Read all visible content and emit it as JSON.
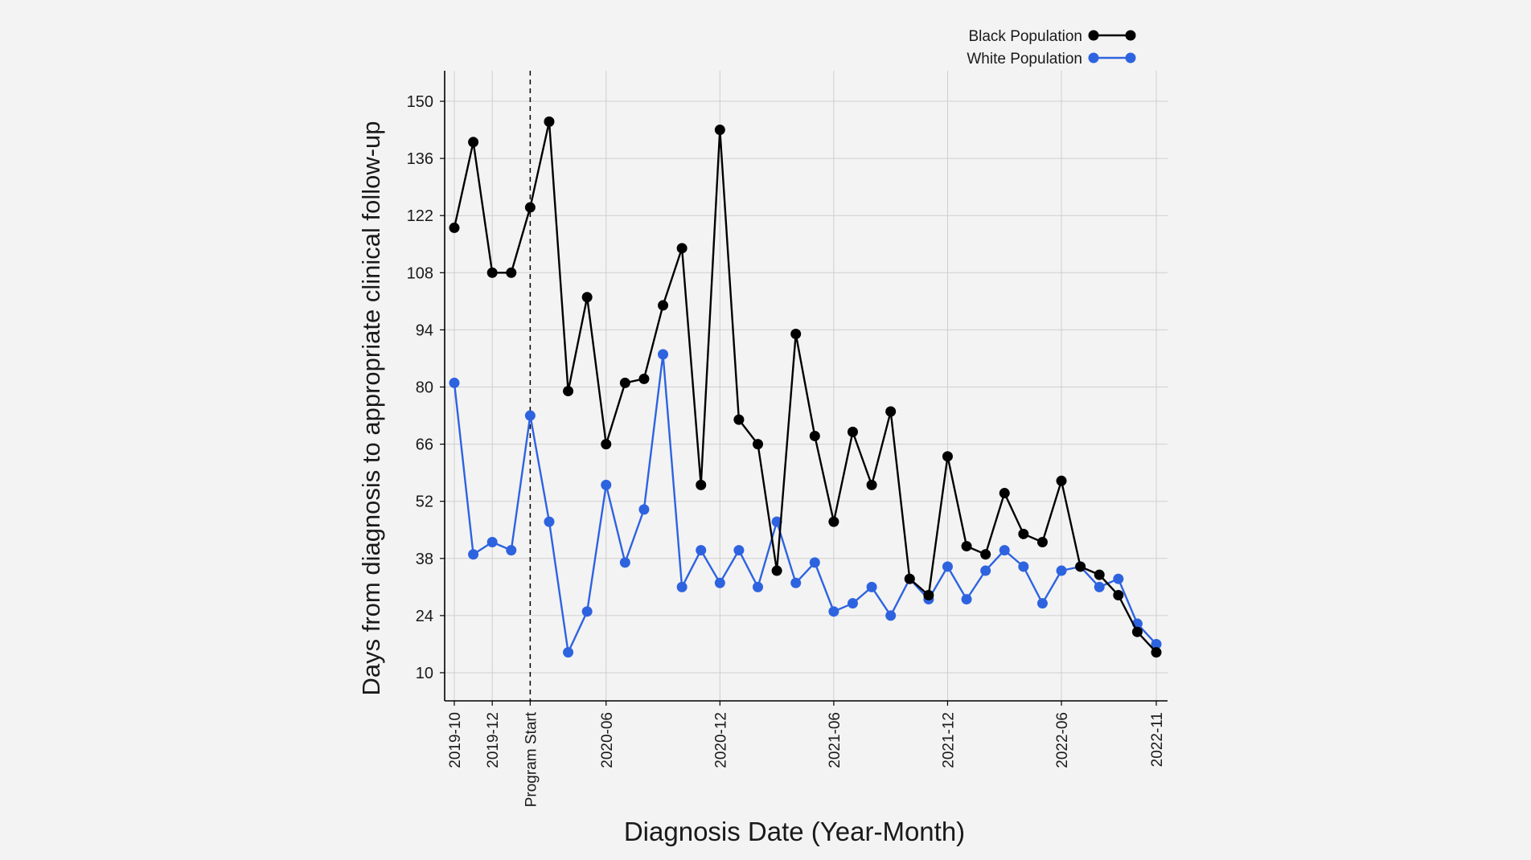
{
  "chart_data": {
    "type": "line",
    "xlabel": "Diagnosis Date (Year-Month)",
    "ylabel": "Days from diagnosis to appropriate clinical follow-up",
    "x": [
      "2019-10",
      "2019-11",
      "2019-12",
      "2020-01",
      "2020-02",
      "2020-03",
      "2020-04",
      "2020-05",
      "2020-06",
      "2020-07",
      "2020-08",
      "2020-09",
      "2020-10",
      "2020-11",
      "2020-12",
      "2021-01",
      "2021-02",
      "2021-03",
      "2021-04",
      "2021-05",
      "2021-06",
      "2021-07",
      "2021-08",
      "2021-09",
      "2021-10",
      "2021-11",
      "2021-12",
      "2022-01",
      "2022-02",
      "2022-03",
      "2022-04",
      "2022-05",
      "2022-06",
      "2022-07",
      "2022-08",
      "2022-09",
      "2022-10",
      "2022-11"
    ],
    "xtick_labels": [
      {
        "x": "2019-10",
        "label": "2019-10"
      },
      {
        "x": "2019-12",
        "label": "2019-12"
      },
      {
        "x": "2020-02",
        "label": "Program Start"
      },
      {
        "x": "2020-06",
        "label": "2020-06"
      },
      {
        "x": "2020-12",
        "label": "2020-12"
      },
      {
        "x": "2021-06",
        "label": "2021-06"
      },
      {
        "x": "2021-12",
        "label": "2021-12"
      },
      {
        "x": "2022-06",
        "label": "2022-06"
      },
      {
        "x": "2022-11",
        "label": "2022-11"
      }
    ],
    "yticks": [
      10,
      24,
      38,
      52,
      66,
      80,
      94,
      108,
      122,
      136,
      150
    ],
    "ylim": [
      3,
      158
    ],
    "program_start": "2020-02",
    "grid": true,
    "legend_position": "top-right",
    "series": [
      {
        "name": "Black Population",
        "color": "#000000",
        "values": [
          119,
          140,
          108,
          108,
          124,
          145,
          79,
          102,
          66,
          81,
          82,
          100,
          114,
          56,
          143,
          72,
          66,
          35,
          93,
          68,
          47,
          69,
          56,
          74,
          33,
          29,
          63,
          41,
          39,
          54,
          44,
          42,
          57,
          36,
          34,
          29,
          20,
          15
        ]
      },
      {
        "name": "White Population",
        "color": "#2e63e0",
        "values": [
          81,
          39,
          42,
          40,
          73,
          47,
          15,
          25,
          56,
          37,
          50,
          88,
          31,
          40,
          32,
          40,
          31,
          47,
          32,
          37,
          25,
          27,
          31,
          24,
          33,
          28,
          36,
          28,
          35,
          40,
          36,
          27,
          35,
          36,
          31,
          33,
          22,
          17
        ]
      }
    ]
  }
}
